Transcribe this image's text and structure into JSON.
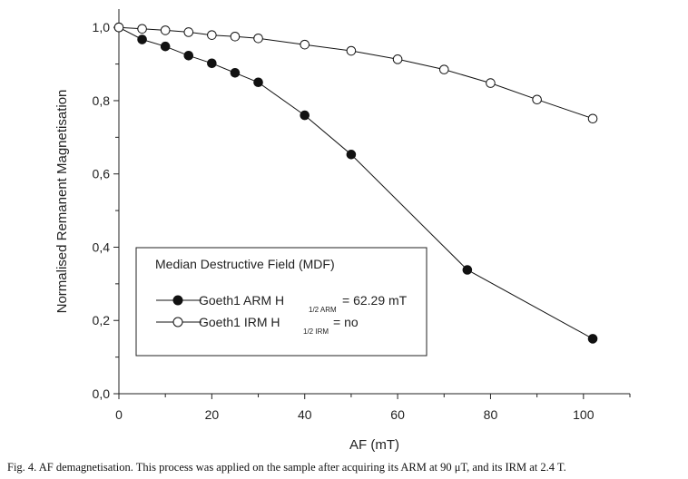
{
  "chart_data": {
    "type": "line",
    "xlabel": "AF (mT)",
    "ylabel": "Normalised Remanent Magnetisation",
    "xlim": [
      0,
      110
    ],
    "ylim": [
      0,
      1.05
    ],
    "x_ticks": [
      "0",
      "20",
      "40",
      "60",
      "80",
      "100"
    ],
    "y_ticks": [
      "0,0",
      "0,2",
      "0,4",
      "0,6",
      "0,8",
      "1,0"
    ],
    "series": [
      {
        "name": "Goeth1 ARM",
        "marker": "filled-circle",
        "color": "#111111",
        "x": [
          0,
          5,
          10,
          15,
          20,
          25,
          30,
          40,
          50,
          75,
          102
        ],
        "y": [
          1.0,
          0.967,
          0.948,
          0.923,
          0.902,
          0.876,
          0.85,
          0.76,
          0.653,
          0.338,
          0.15
        ]
      },
      {
        "name": "Goeth1 IRM",
        "marker": "open-circle",
        "color": "#111111",
        "x": [
          0,
          5,
          10,
          15,
          20,
          25,
          30,
          40,
          50,
          60,
          70,
          80,
          90,
          102
        ],
        "y": [
          1.0,
          0.996,
          0.992,
          0.987,
          0.979,
          0.975,
          0.97,
          0.953,
          0.936,
          0.913,
          0.885,
          0.848,
          0.803,
          0.751
        ]
      }
    ],
    "legend": {
      "placement": "lower-left",
      "title": "Median Destructive Field (MDF)",
      "entries": [
        {
          "label": "Goeth1 ARM  H",
          "subscript": "1/2 ARM",
          "value": "= 62.29 mT"
        },
        {
          "label": "Goeth1 IRM  H",
          "subscript": "1/2 IRM",
          "value": "= no"
        }
      ]
    },
    "grid": false
  },
  "caption": "Fig. 4. AF demagnetisation. This process was applied on the sample after acquiring its ARM at 90 μT, and its IRM at 2.4 T."
}
